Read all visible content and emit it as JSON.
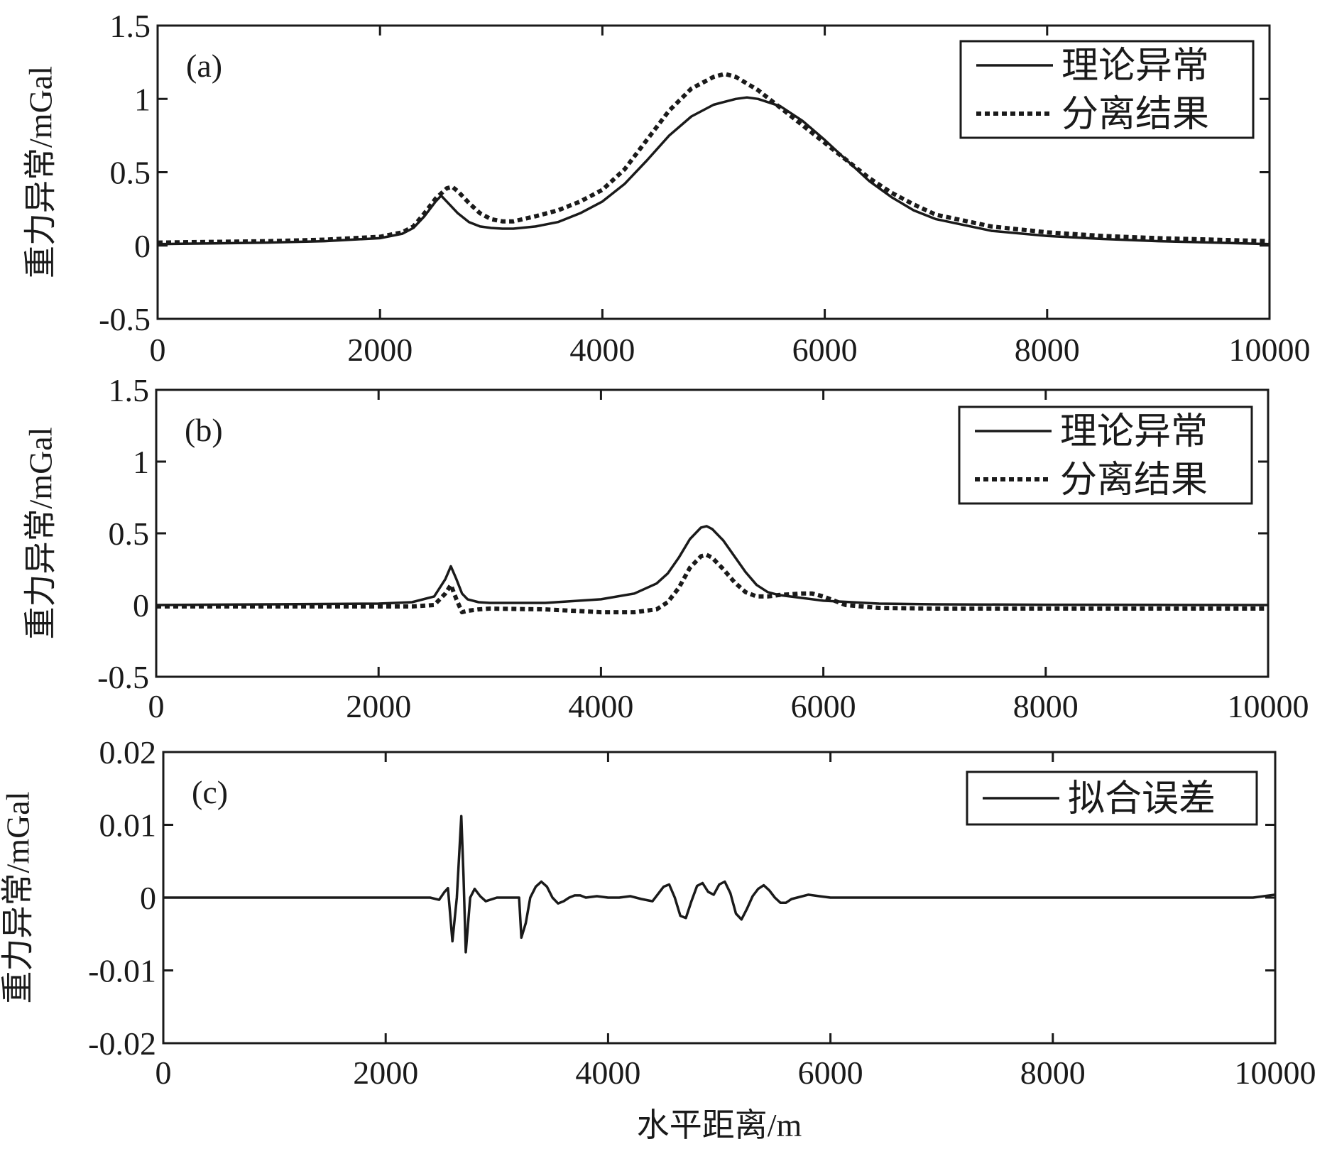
{
  "chart_data": [
    {
      "type": "line",
      "panel_label": "(a)",
      "title": "",
      "xlabel": "",
      "ylabel": "重力异常/mGal",
      "xlim": [
        0,
        10000
      ],
      "ylim": [
        -0.5,
        1.5
      ],
      "xticks": [
        0,
        2000,
        4000,
        6000,
        8000,
        10000
      ],
      "xtick_labels": [
        "0",
        "2000",
        "4000",
        "6000",
        "8000",
        "10000"
      ],
      "yticks": [
        -0.5,
        0,
        0.5,
        1,
        1.5
      ],
      "ytick_labels": [
        "-0.5",
        "0",
        "0.5",
        "1",
        "1.5"
      ],
      "grid": false,
      "legend_position": "top-right",
      "series": [
        {
          "name": "理论异常",
          "style": "solid",
          "x": [
            0,
            500,
            1000,
            1500,
            2000,
            2200,
            2300,
            2400,
            2500,
            2550,
            2600,
            2700,
            2800,
            2900,
            3000,
            3100,
            3200,
            3400,
            3600,
            3800,
            4000,
            4200,
            4400,
            4600,
            4800,
            5000,
            5200,
            5300,
            5400,
            5600,
            5800,
            6000,
            6200,
            6400,
            6600,
            6800,
            7000,
            7500,
            8000,
            8500,
            9000,
            9500,
            10000
          ],
          "y": [
            0.01,
            0.015,
            0.02,
            0.03,
            0.05,
            0.08,
            0.12,
            0.2,
            0.3,
            0.34,
            0.3,
            0.22,
            0.16,
            0.13,
            0.12,
            0.115,
            0.115,
            0.13,
            0.16,
            0.22,
            0.3,
            0.42,
            0.58,
            0.75,
            0.88,
            0.96,
            1.0,
            1.01,
            1.0,
            0.95,
            0.85,
            0.72,
            0.58,
            0.44,
            0.33,
            0.24,
            0.18,
            0.1,
            0.065,
            0.045,
            0.03,
            0.02,
            0.01
          ]
        },
        {
          "name": "分离结果",
          "style": "dotted",
          "x": [
            0,
            500,
            1000,
            1500,
            2000,
            2200,
            2300,
            2400,
            2500,
            2600,
            2650,
            2700,
            2800,
            2900,
            3000,
            3100,
            3200,
            3400,
            3600,
            3800,
            4000,
            4200,
            4400,
            4600,
            4800,
            5000,
            5100,
            5200,
            5400,
            5600,
            5800,
            6000,
            6200,
            6400,
            6600,
            6800,
            7000,
            7500,
            8000,
            8500,
            9000,
            9500,
            10000
          ],
          "y": [
            0.02,
            0.025,
            0.03,
            0.04,
            0.06,
            0.09,
            0.13,
            0.22,
            0.32,
            0.39,
            0.4,
            0.37,
            0.29,
            0.22,
            0.18,
            0.165,
            0.165,
            0.2,
            0.24,
            0.3,
            0.38,
            0.52,
            0.72,
            0.92,
            1.07,
            1.15,
            1.17,
            1.15,
            1.06,
            0.94,
            0.82,
            0.7,
            0.58,
            0.46,
            0.36,
            0.28,
            0.21,
            0.13,
            0.09,
            0.065,
            0.05,
            0.04,
            0.03
          ]
        }
      ]
    },
    {
      "type": "line",
      "panel_label": "(b)",
      "title": "",
      "xlabel": "",
      "ylabel": "重力异常/mGal",
      "xlim": [
        0,
        10000
      ],
      "ylim": [
        -0.5,
        1.5
      ],
      "xticks": [
        0,
        2000,
        4000,
        6000,
        8000,
        10000
      ],
      "xtick_labels": [
        "0",
        "2000",
        "4000",
        "6000",
        "8000",
        "10000"
      ],
      "yticks": [
        -0.5,
        0,
        0.5,
        1,
        1.5
      ],
      "ytick_labels": [
        "-0.5",
        "0",
        "0.5",
        "1",
        "1.5"
      ],
      "grid": false,
      "legend_position": "top-right",
      "series": [
        {
          "name": "理论异常",
          "style": "solid",
          "x": [
            0,
            1000,
            2000,
            2300,
            2500,
            2600,
            2650,
            2700,
            2750,
            2800,
            2900,
            3000,
            3500,
            4000,
            4300,
            4500,
            4600,
            4700,
            4800,
            4900,
            4950,
            5000,
            5100,
            5200,
            5300,
            5400,
            5500,
            5600,
            5800,
            6000,
            6500,
            7000,
            8000,
            9000,
            10000
          ],
          "y": [
            0.0,
            0.005,
            0.01,
            0.02,
            0.06,
            0.18,
            0.27,
            0.18,
            0.08,
            0.04,
            0.02,
            0.015,
            0.015,
            0.04,
            0.08,
            0.15,
            0.22,
            0.33,
            0.46,
            0.54,
            0.55,
            0.53,
            0.45,
            0.34,
            0.23,
            0.14,
            0.09,
            0.07,
            0.05,
            0.03,
            0.01,
            0.005,
            0.002,
            0.001,
            0.0
          ]
        },
        {
          "name": "分离结果",
          "style": "dotted",
          "x": [
            0,
            1000,
            2000,
            2300,
            2500,
            2600,
            2650,
            2700,
            2750,
            2800,
            2900,
            3000,
            3500,
            4000,
            4300,
            4500,
            4600,
            4700,
            4800,
            4900,
            4950,
            5000,
            5100,
            5200,
            5300,
            5400,
            5500,
            5600,
            5800,
            5900,
            6000,
            6200,
            6500,
            7000,
            8000,
            9000,
            10000
          ],
          "y": [
            -0.01,
            -0.01,
            -0.01,
            -0.01,
            0.0,
            0.08,
            0.14,
            0.04,
            -0.05,
            -0.04,
            -0.03,
            -0.025,
            -0.03,
            -0.05,
            -0.05,
            -0.03,
            0.02,
            0.12,
            0.26,
            0.34,
            0.35,
            0.33,
            0.25,
            0.16,
            0.09,
            0.06,
            0.06,
            0.07,
            0.08,
            0.08,
            0.06,
            0.0,
            -0.02,
            -0.025,
            -0.025,
            -0.025,
            -0.025
          ]
        }
      ]
    },
    {
      "type": "line",
      "panel_label": "(c)",
      "title": "",
      "xlabel": "水平距离/m",
      "ylabel": "重力异常/mGal",
      "xlim": [
        0,
        10000
      ],
      "ylim": [
        -0.02,
        0.02
      ],
      "xticks": [
        0,
        2000,
        4000,
        6000,
        8000,
        10000
      ],
      "xtick_labels": [
        "0",
        "2000",
        "4000",
        "6000",
        "8000",
        "10000"
      ],
      "yticks": [
        -0.02,
        -0.01,
        0,
        0.01,
        0.02
      ],
      "ytick_labels": [
        "-0.02",
        "-0.01",
        "0",
        "0.01",
        "0.02"
      ],
      "grid": false,
      "legend_position": "top-right",
      "series": [
        {
          "name": "拟合误差",
          "style": "solid",
          "x": [
            0,
            2400,
            2480,
            2530,
            2560,
            2600,
            2640,
            2680,
            2700,
            2720,
            2760,
            2800,
            2850,
            2900,
            3000,
            3100,
            3200,
            3220,
            3260,
            3300,
            3350,
            3400,
            3450,
            3500,
            3550,
            3600,
            3650,
            3700,
            3750,
            3800,
            3900,
            4000,
            4100,
            4200,
            4300,
            4400,
            4500,
            4550,
            4600,
            4650,
            4700,
            4750,
            4800,
            4850,
            4900,
            4950,
            5000,
            5050,
            5100,
            5150,
            5200,
            5250,
            5300,
            5350,
            5400,
            5450,
            5500,
            5550,
            5600,
            5650,
            5700,
            5800,
            5900,
            6000,
            6500,
            7000,
            8000,
            9000,
            9500,
            9800,
            10000
          ],
          "y": [
            0.0,
            0.0,
            -0.0003,
            0.0008,
            0.0013,
            -0.006,
            0.0,
            0.0112,
            0.003,
            -0.0075,
            0.0,
            0.0012,
            0.0002,
            -0.0005,
            0.0,
            0.0,
            0.0,
            -0.0055,
            -0.0035,
            0.0,
            0.0015,
            0.0022,
            0.0015,
            0.0,
            -0.0008,
            -0.0005,
            0.0,
            0.0003,
            0.0003,
            0.0,
            0.0002,
            0.0,
            0.0,
            0.0002,
            -0.0002,
            -0.0005,
            0.0015,
            0.0018,
            0.0,
            -0.0025,
            -0.0028,
            -0.0005,
            0.0016,
            0.002,
            0.0008,
            0.0004,
            0.0018,
            0.0022,
            0.0006,
            -0.0022,
            -0.003,
            -0.0015,
            0.0002,
            0.0012,
            0.0017,
            0.001,
            0.0,
            -0.0007,
            -0.0007,
            -0.0002,
            0.0,
            0.0004,
            0.0002,
            0.0,
            0.0,
            0.0,
            0.0,
            0.0,
            0.0,
            0.0,
            0.0004
          ]
        }
      ]
    }
  ]
}
